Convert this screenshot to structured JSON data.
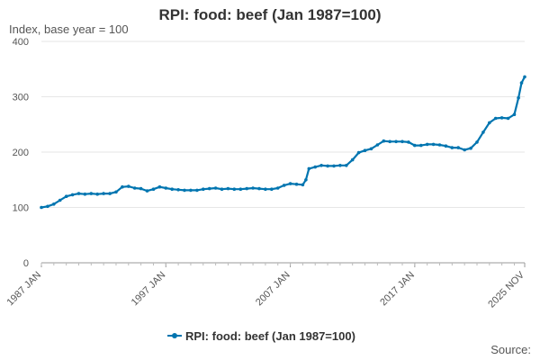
{
  "chart_data": {
    "type": "line",
    "title": "RPI: food: beef (Jan 1987=100)",
    "ylabel": "Index, base year = 100",
    "ylim": [
      0,
      400
    ],
    "yticks": [
      0,
      100,
      200,
      300,
      400
    ],
    "x_range": [
      "1987-01",
      "2025-11"
    ],
    "xtick_labels": [
      "1987 JAN",
      "1997 JAN",
      "2007 JAN",
      "2017 JAN",
      "2025 NOV"
    ],
    "xtick_dates": [
      "1987-01",
      "1997-01",
      "2007-01",
      "2017-01",
      "2025-11"
    ],
    "grid": true,
    "legend_position": "bottom-center",
    "series": [
      {
        "name": "RPI: food: beef (Jan 1987=100)",
        "color": "#0075b0",
        "points": [
          [
            "1987-01",
            100
          ],
          [
            "1987-07",
            102
          ],
          [
            "1988-01",
            106
          ],
          [
            "1988-07",
            113
          ],
          [
            "1989-01",
            120
          ],
          [
            "1989-07",
            123
          ],
          [
            "1990-01",
            125
          ],
          [
            "1990-07",
            124
          ],
          [
            "1991-01",
            125
          ],
          [
            "1991-07",
            124
          ],
          [
            "1992-01",
            125
          ],
          [
            "1992-07",
            125
          ],
          [
            "1993-01",
            128
          ],
          [
            "1993-07",
            137
          ],
          [
            "1994-01",
            138
          ],
          [
            "1994-07",
            135
          ],
          [
            "1995-01",
            134
          ],
          [
            "1995-07",
            130
          ],
          [
            "1996-01",
            133
          ],
          [
            "1996-07",
            137
          ],
          [
            "1997-01",
            135
          ],
          [
            "1997-07",
            133
          ],
          [
            "1998-01",
            132
          ],
          [
            "1998-07",
            131
          ],
          [
            "1999-01",
            131
          ],
          [
            "1999-07",
            131
          ],
          [
            "2000-01",
            133
          ],
          [
            "2000-07",
            134
          ],
          [
            "2001-01",
            135
          ],
          [
            "2001-07",
            133
          ],
          [
            "2002-01",
            134
          ],
          [
            "2002-07",
            133
          ],
          [
            "2003-01",
            133
          ],
          [
            "2003-07",
            134
          ],
          [
            "2004-01",
            135
          ],
          [
            "2004-07",
            134
          ],
          [
            "2005-01",
            133
          ],
          [
            "2005-07",
            133
          ],
          [
            "2006-01",
            135
          ],
          [
            "2006-07",
            140
          ],
          [
            "2007-01",
            143
          ],
          [
            "2007-07",
            142
          ],
          [
            "2008-01",
            141
          ],
          [
            "2008-04",
            150
          ],
          [
            "2008-07",
            170
          ],
          [
            "2009-01",
            173
          ],
          [
            "2009-07",
            176
          ],
          [
            "2010-01",
            175
          ],
          [
            "2010-07",
            175
          ],
          [
            "2011-01",
            176
          ],
          [
            "2011-07",
            176
          ],
          [
            "2012-01",
            186
          ],
          [
            "2012-07",
            199
          ],
          [
            "2013-01",
            203
          ],
          [
            "2013-07",
            206
          ],
          [
            "2014-01",
            213
          ],
          [
            "2014-07",
            220
          ],
          [
            "2015-01",
            219
          ],
          [
            "2015-07",
            219
          ],
          [
            "2016-01",
            219
          ],
          [
            "2016-07",
            218
          ],
          [
            "2017-01",
            212
          ],
          [
            "2017-07",
            212
          ],
          [
            "2018-01",
            214
          ],
          [
            "2018-07",
            214
          ],
          [
            "2019-01",
            213
          ],
          [
            "2019-07",
            211
          ],
          [
            "2020-01",
            208
          ],
          [
            "2020-07",
            208
          ],
          [
            "2021-01",
            204
          ],
          [
            "2021-07",
            207
          ],
          [
            "2022-01",
            218
          ],
          [
            "2022-07",
            236
          ],
          [
            "2023-01",
            253
          ],
          [
            "2023-07",
            261
          ],
          [
            "2024-01",
            262
          ],
          [
            "2024-07",
            261
          ],
          [
            "2025-01",
            268
          ],
          [
            "2025-05",
            298
          ],
          [
            "2025-08",
            325
          ],
          [
            "2025-11",
            336
          ]
        ]
      }
    ]
  },
  "source_label": "Source:"
}
